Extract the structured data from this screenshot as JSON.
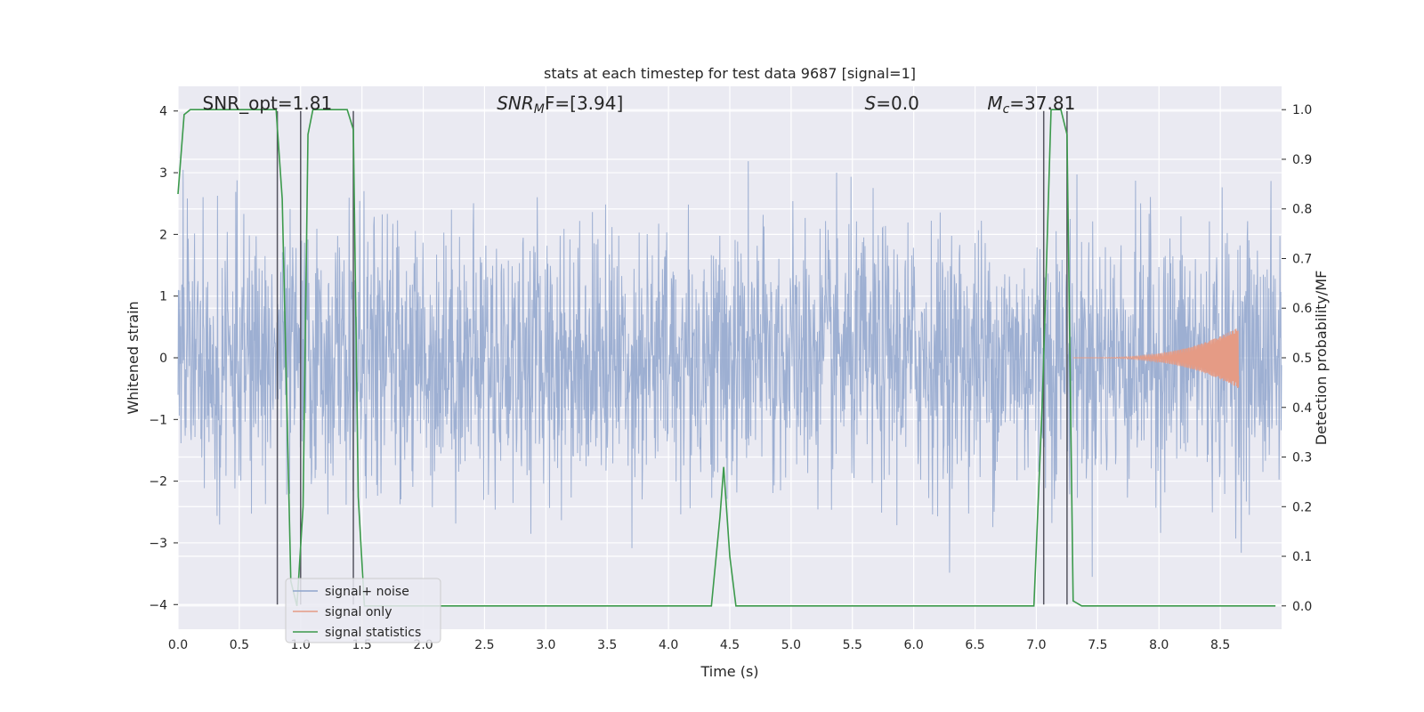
{
  "chart_data": {
    "type": "line",
    "title": "stats at each timestep for test data 9687 [signal=1]",
    "xlabel": "Time (s)",
    "ylabel": "Whitened strain",
    "y2label": "Detection probability/MF",
    "xlim": [
      0.0,
      9.0
    ],
    "ylim": [
      -4.4,
      4.4
    ],
    "y2lim": [
      -0.047,
      1.047
    ],
    "x_ticks": [
      "0.0",
      "0.5",
      "1.0",
      "1.5",
      "2.0",
      "2.5",
      "3.0",
      "3.5",
      "4.0",
      "4.5",
      "5.0",
      "5.5",
      "6.0",
      "6.5",
      "7.0",
      "7.5",
      "8.0",
      "8.5"
    ],
    "y_ticks": [
      "4",
      "3",
      "2",
      "1",
      "0",
      "−1",
      "−2",
      "−3",
      "−4"
    ],
    "y2_ticks": [
      "1.0",
      "0.9",
      "0.8",
      "0.7",
      "0.6",
      "0.5",
      "0.4",
      "0.3",
      "0.2",
      "0.1",
      "0.0"
    ],
    "grid": true,
    "legend_position": "lower-left",
    "annotations": [
      {
        "text": "SNR_opt=1.81",
        "x": 0.2
      },
      {
        "html": "SNR",
        "sub": "M",
        "suffix": "F=[3.94]",
        "x": 2.6
      },
      {
        "html": "S",
        "sub": "",
        "suffix": "=0.0",
        "x": 5.6
      },
      {
        "html": "M",
        "sub": "c",
        "suffix": "=37.81",
        "x": 6.6
      }
    ],
    "series": [
      {
        "name": "signal+ noise",
        "color": "#8fa5cd",
        "kind": "noise",
        "amplitude_range": [
          -4.0,
          4.0
        ]
      },
      {
        "name": "signal only",
        "color": "#e59b85",
        "kind": "chirp",
        "start": 7.3,
        "end": 8.65,
        "peak_amplitude": 0.5
      },
      {
        "name": "signal statistics",
        "color": "#3c9a4c",
        "axis": "right",
        "x": [
          0.0,
          0.05,
          0.1,
          0.8,
          0.85,
          0.92,
          0.97,
          1.02,
          1.06,
          1.1,
          1.38,
          1.43,
          1.47,
          1.52,
          4.35,
          4.42,
          4.45,
          4.5,
          4.55,
          6.98,
          7.05,
          7.12,
          7.2,
          7.25,
          7.3,
          7.37,
          8.95
        ],
        "values": [
          0.83,
          0.99,
          1.0,
          1.0,
          0.82,
          0.05,
          0.0,
          0.2,
          0.95,
          1.0,
          1.0,
          0.96,
          0.22,
          0.0,
          0.0,
          0.18,
          0.28,
          0.1,
          0.0,
          0.0,
          0.42,
          1.0,
          1.0,
          0.95,
          0.01,
          0.0,
          0.0
        ]
      }
    ],
    "vlines": [
      0.81,
      1.0,
      1.43,
      7.06,
      7.25
    ]
  }
}
